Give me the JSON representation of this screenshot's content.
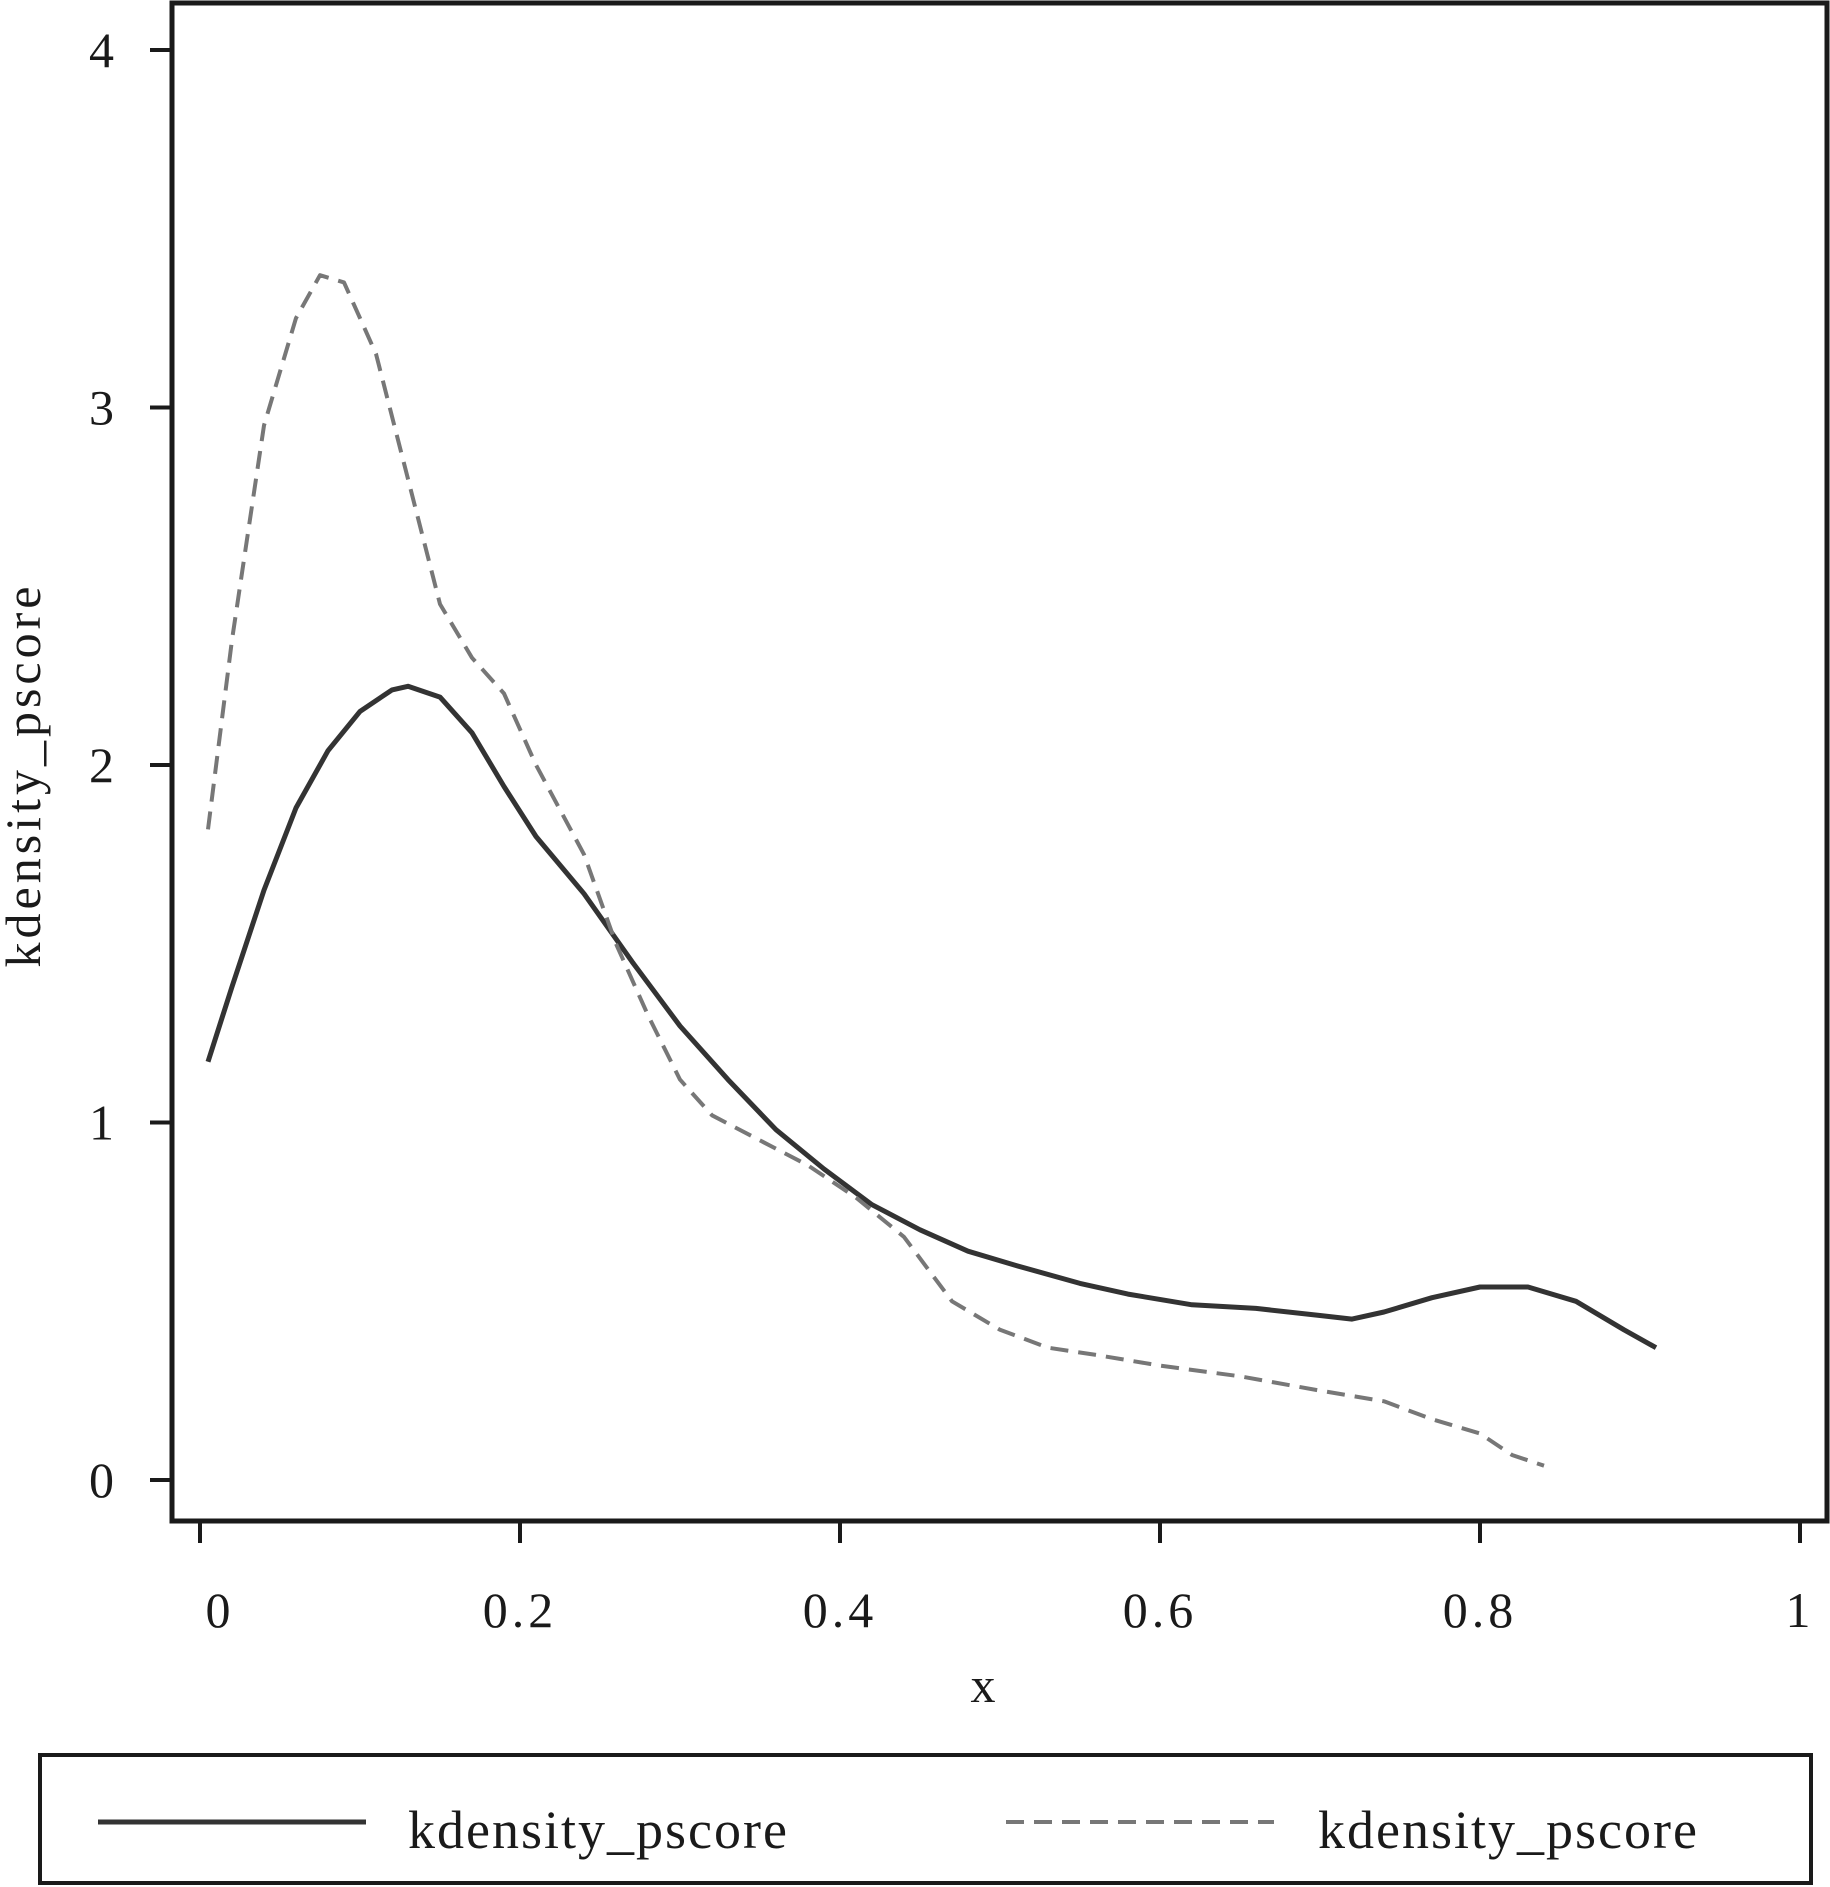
{
  "chart_data": {
    "type": "line",
    "title": "",
    "xlabel": "x",
    "ylabel": "kdensity_pscore",
    "xlim": [
      0,
      1
    ],
    "ylim": [
      -0.1,
      4.1
    ],
    "x_ticks": [
      {
        "value": 0,
        "label": "0"
      },
      {
        "value": 0.2,
        "label": "0.2"
      },
      {
        "value": 0.4,
        "label": "0.4"
      },
      {
        "value": 0.6,
        "label": "0.6"
      },
      {
        "value": 0.8,
        "label": "0.8"
      },
      {
        "value": 1,
        "label": "1"
      }
    ],
    "y_ticks": [
      {
        "value": 0,
        "label": "0"
      },
      {
        "value": 1,
        "label": "1"
      },
      {
        "value": 2,
        "label": "2"
      },
      {
        "value": 3,
        "label": "3"
      },
      {
        "value": 4,
        "label": "4"
      }
    ],
    "grid": false,
    "legend_position": "bottom",
    "series": [
      {
        "name": "kdensity_pscore",
        "style": "solid",
        "color": "#333333",
        "points": [
          [
            0.005,
            1.17
          ],
          [
            0.02,
            1.38
          ],
          [
            0.04,
            1.65
          ],
          [
            0.06,
            1.88
          ],
          [
            0.08,
            2.04
          ],
          [
            0.1,
            2.15
          ],
          [
            0.12,
            2.21
          ],
          [
            0.13,
            2.22
          ],
          [
            0.15,
            2.19
          ],
          [
            0.17,
            2.09
          ],
          [
            0.19,
            1.94
          ],
          [
            0.21,
            1.8
          ],
          [
            0.24,
            1.64
          ],
          [
            0.27,
            1.45
          ],
          [
            0.3,
            1.27
          ],
          [
            0.33,
            1.12
          ],
          [
            0.36,
            0.98
          ],
          [
            0.39,
            0.87
          ],
          [
            0.42,
            0.77
          ],
          [
            0.45,
            0.7
          ],
          [
            0.48,
            0.64
          ],
          [
            0.51,
            0.6
          ],
          [
            0.55,
            0.55
          ],
          [
            0.58,
            0.52
          ],
          [
            0.62,
            0.49
          ],
          [
            0.66,
            0.48
          ],
          [
            0.7,
            0.46
          ],
          [
            0.72,
            0.45
          ],
          [
            0.74,
            0.47
          ],
          [
            0.77,
            0.51
          ],
          [
            0.8,
            0.54
          ],
          [
            0.83,
            0.54
          ],
          [
            0.86,
            0.5
          ],
          [
            0.89,
            0.42
          ],
          [
            0.91,
            0.37
          ]
        ]
      },
      {
        "name": "kdensity_pscore",
        "style": "dashed",
        "color": "#777777",
        "points": [
          [
            0.005,
            1.82
          ],
          [
            0.02,
            2.35
          ],
          [
            0.04,
            2.95
          ],
          [
            0.06,
            3.25
          ],
          [
            0.075,
            3.37
          ],
          [
            0.09,
            3.35
          ],
          [
            0.11,
            3.15
          ],
          [
            0.13,
            2.8
          ],
          [
            0.15,
            2.45
          ],
          [
            0.17,
            2.3
          ],
          [
            0.19,
            2.2
          ],
          [
            0.21,
            2.0
          ],
          [
            0.24,
            1.75
          ],
          [
            0.26,
            1.5
          ],
          [
            0.28,
            1.3
          ],
          [
            0.3,
            1.12
          ],
          [
            0.32,
            1.02
          ],
          [
            0.35,
            0.95
          ],
          [
            0.38,
            0.88
          ],
          [
            0.41,
            0.79
          ],
          [
            0.44,
            0.68
          ],
          [
            0.47,
            0.5
          ],
          [
            0.5,
            0.42
          ],
          [
            0.53,
            0.37
          ],
          [
            0.56,
            0.35
          ],
          [
            0.6,
            0.32
          ],
          [
            0.65,
            0.29
          ],
          [
            0.7,
            0.25
          ],
          [
            0.74,
            0.22
          ],
          [
            0.77,
            0.17
          ],
          [
            0.8,
            0.13
          ],
          [
            0.82,
            0.07
          ],
          [
            0.84,
            0.04
          ]
        ]
      }
    ]
  }
}
